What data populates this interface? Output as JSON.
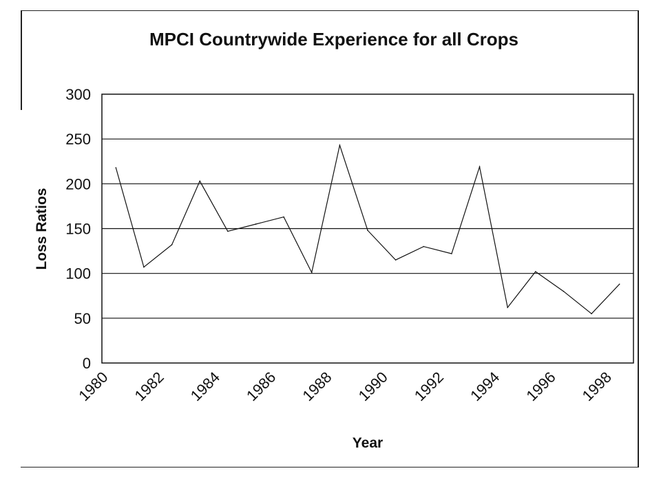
{
  "chart_data": {
    "type": "line",
    "title": "MPCI Countrywide Experience for all Crops",
    "xlabel": "Year",
    "ylabel": "Loss Ratios",
    "ylim": [
      0,
      300
    ],
    "xlim": [
      1980,
      1999
    ],
    "yticks": [
      0,
      50,
      100,
      150,
      200,
      250,
      300
    ],
    "xticks": [
      "1980",
      "1982",
      "1984",
      "1986",
      "1988",
      "1990",
      "1992",
      "1994",
      "1996",
      "1998"
    ],
    "grid": "horizontal",
    "legend": "none",
    "line_color": "#111111",
    "x": [
      1980.5,
      1981.5,
      1982.5,
      1983.5,
      1984.5,
      1985.5,
      1986.5,
      1987.5,
      1988.5,
      1989.5,
      1990.5,
      1991.5,
      1992.5,
      1993.5,
      1994.5,
      1995.5,
      1996.5,
      1997.5,
      1998.5
    ],
    "values": [
      218,
      107,
      132,
      203,
      147,
      155,
      163,
      101,
      243,
      148,
      115,
      130,
      122,
      219,
      62,
      102,
      80,
      55,
      88
    ]
  }
}
